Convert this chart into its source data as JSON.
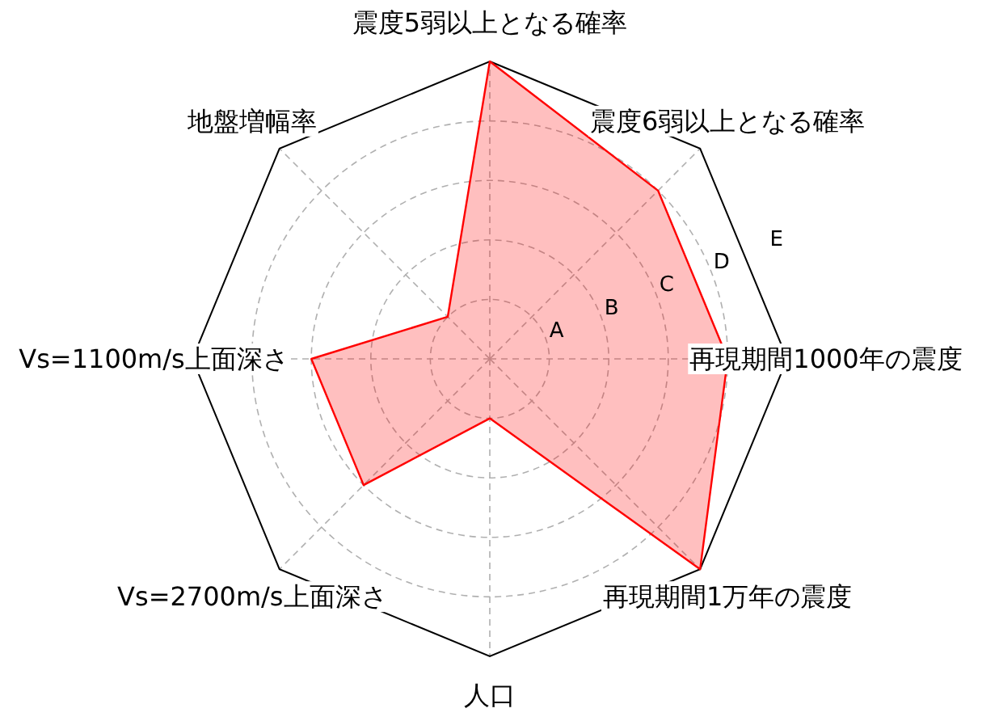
{
  "chart_data": {
    "type": "radar",
    "categories": [
      "震度5弱以上となる確率",
      "震度6弱以上となる確率",
      "再現期間1000年の震度",
      "再現期間1万年の震度",
      "人口",
      "Vs=2700m/s上面深さ",
      "Vs=1100m/s上面深さ",
      "地盤増幅率"
    ],
    "series": [
      {
        "color": "#ff0000",
        "values": [
          5,
          4,
          4,
          5,
          1,
          3,
          3,
          1
        ]
      }
    ],
    "ylim": [
      0,
      5
    ],
    "yticks": [
      {
        "value": 1,
        "label": "A"
      },
      {
        "value": 2,
        "label": "B"
      },
      {
        "value": 3,
        "label": "C"
      },
      {
        "value": 4,
        "label": "D"
      },
      {
        "value": 5,
        "label": "E"
      }
    ],
    "grid": true
  }
}
